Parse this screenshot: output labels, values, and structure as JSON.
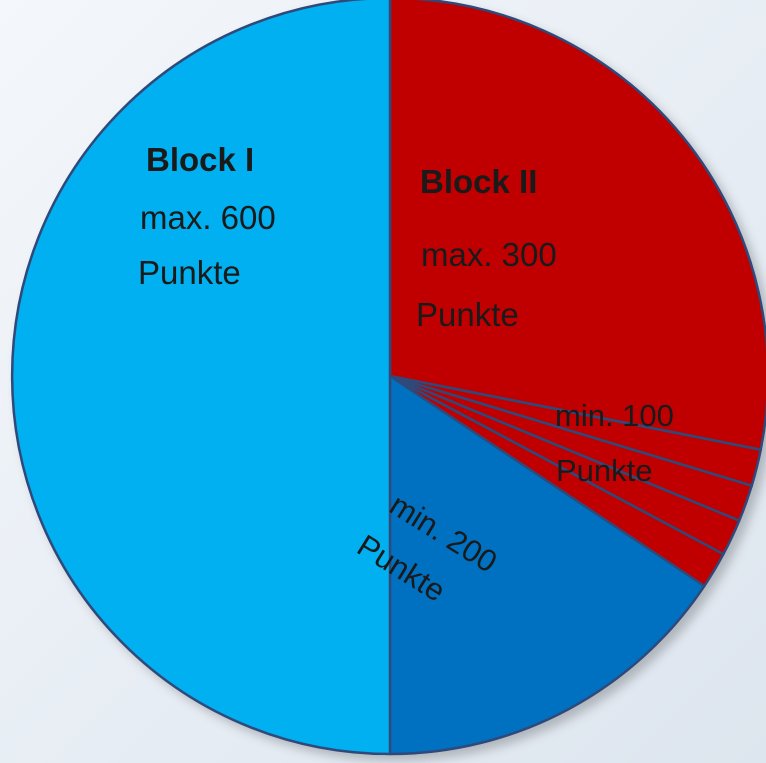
{
  "chart_data": {
    "type": "pie",
    "title": "",
    "start_angle_deg": -90,
    "direction": "clockwise",
    "slices": [
      {
        "name": "block-2-max",
        "value": 225,
        "color": "#c00000"
      },
      {
        "name": "block-2-min-part-1",
        "value": 12.5,
        "color": "#c00000"
      },
      {
        "name": "block-2-min-part-2",
        "value": 12.5,
        "color": "#c00000"
      },
      {
        "name": "block-2-min-part-3",
        "value": 12.5,
        "color": "#c00000"
      },
      {
        "name": "block-2-min-part-4",
        "value": 12.5,
        "color": "#c00000"
      },
      {
        "name": "block-1-min",
        "value": 125,
        "color": "#0070c0"
      },
      {
        "name": "block-1-max",
        "value": 400,
        "color": "#00b0f0"
      }
    ],
    "stroke_color": "#2f4a7a"
  },
  "labels": {
    "block1_title": "Block I",
    "block1_max": "max. 600",
    "block1_unit": "Punkte",
    "block2_title": "Block II",
    "block2_max": "max. 300",
    "block2_unit": "Punkte",
    "block2_min": "min. 100",
    "block2_min_unit": "Punkte",
    "block1_min": "min. 200",
    "block1_min_unit": "Punkte"
  }
}
